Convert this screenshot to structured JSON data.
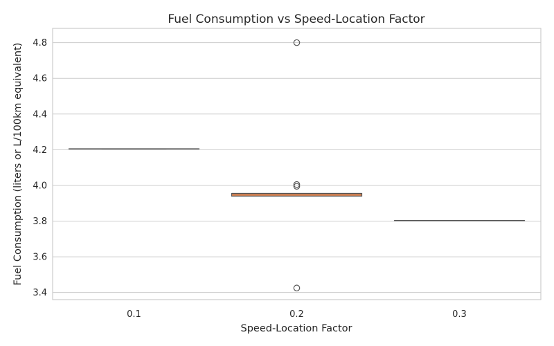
{
  "chart_data": {
    "type": "box",
    "title": "Fuel Consumption vs Speed-Location Factor",
    "xlabel": "Speed-Location Factor",
    "ylabel": "Fuel Consumption (liters or L/100km equivalent)",
    "categories": [
      "0.1",
      "0.2",
      "0.3"
    ],
    "ylim": [
      3.36,
      4.88
    ],
    "yticks": [
      3.4,
      3.6,
      3.8,
      4.0,
      4.2,
      4.4,
      4.6,
      4.8
    ],
    "ytick_labels": [
      "3.4",
      "3.6",
      "3.8",
      "4.0",
      "4.2",
      "4.4",
      "4.6",
      "4.8"
    ],
    "grid": true,
    "boxes": [
      {
        "category": "0.1",
        "q1": 4.205,
        "median": 4.205,
        "q3": 4.205,
        "whisker_low": 4.205,
        "whisker_high": 4.205,
        "outliers": [],
        "color": "#4c72b0"
      },
      {
        "category": "0.2",
        "q1": 3.94,
        "median": 3.955,
        "q3": 3.955,
        "whisker_low": 3.94,
        "whisker_high": 3.955,
        "outliers": [
          3.425,
          3.995,
          4.005,
          4.8
        ],
        "color": "#dd8452"
      },
      {
        "category": "0.3",
        "q1": 3.803,
        "median": 3.803,
        "q3": 3.803,
        "whisker_low": 3.803,
        "whisker_high": 3.803,
        "outliers": [],
        "color": "#55a868"
      }
    ],
    "colors": {
      "grid": "#cccccc",
      "frame": "#cccccc",
      "line": "#555555",
      "text": "#262626"
    }
  }
}
